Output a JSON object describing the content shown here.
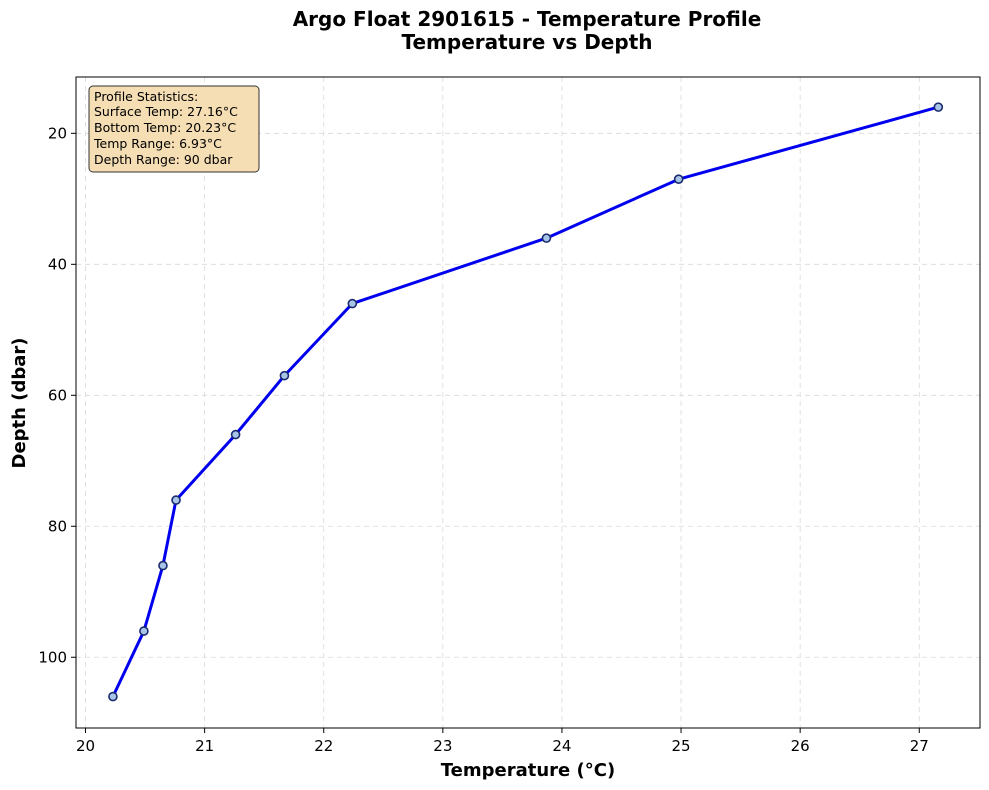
{
  "chart_data": {
    "type": "line",
    "title": "Argo Float 2901615 - Temperature Profile",
    "subtitle": "Temperature vs Depth",
    "xlabel": "Temperature (°C)",
    "ylabel": "Depth (dbar)",
    "xlim": [
      19.92,
      27.51
    ],
    "ylim": [
      110.8,
      11.4
    ],
    "y_inverted": true,
    "grid": true,
    "x_ticks": [
      "20",
      "21",
      "22",
      "23",
      "24",
      "25",
      "26",
      "27"
    ],
    "y_ticks": [
      "20",
      "40",
      "60",
      "80",
      "100"
    ],
    "series": [
      {
        "x": [
          27.16,
          24.98,
          23.87,
          22.24,
          21.67,
          21.26,
          20.76,
          20.65,
          20.49,
          20.23
        ],
        "y": [
          16,
          27,
          36,
          46,
          57,
          66,
          76,
          86,
          96,
          106
        ]
      }
    ],
    "line_color": "#0000ee",
    "marker_face_color": "#a8c4e6",
    "marker_edge_color": "#1a2a6e",
    "stats_box": {
      "lines": [
        "Profile Statistics:",
        "Surface Temp: 27.16°C",
        "Bottom Temp: 20.23°C",
        "Temp Range: 6.93°C",
        "Depth Range: 90 dbar"
      ],
      "background": "#f5deb3",
      "placement": "top-left"
    }
  }
}
